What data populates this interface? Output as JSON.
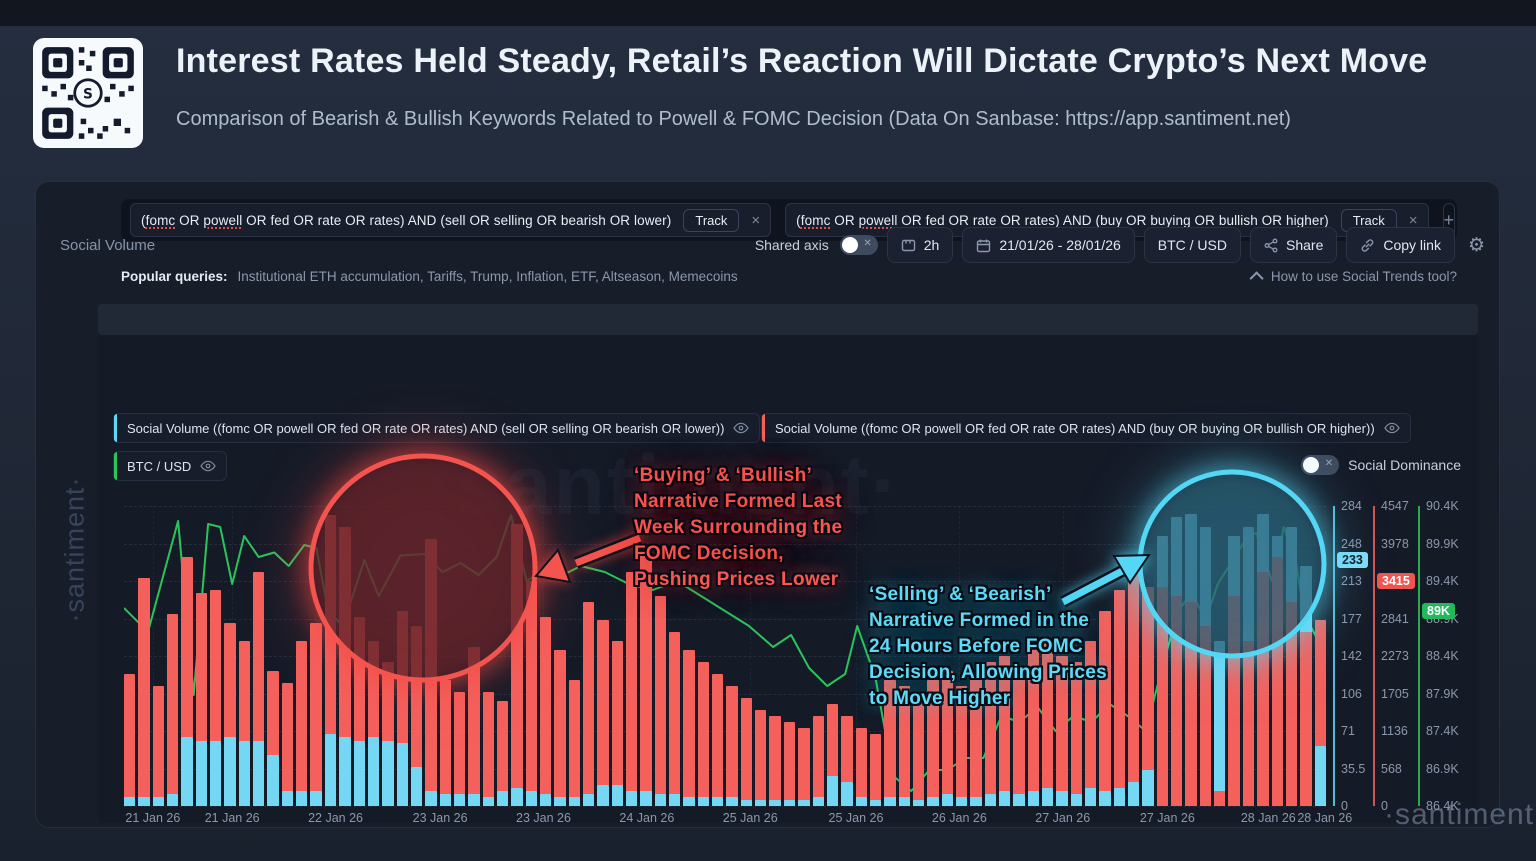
{
  "header": {
    "title": "Interest Rates Held Steady, Retail’s Reaction Will Dictate Crypto’s Next Move",
    "subtitle": "Comparison of Bearish & Bullish Keywords Related to Powell & FOMC Decision (Data On Sanbase: https://app.santiment.net)"
  },
  "queries": [
    {
      "text": "(fomc OR powell OR fed OR rate OR rates) AND (sell OR selling OR bearish OR lower)",
      "track_label": "Track",
      "close_label": "×"
    },
    {
      "text": "(fomc OR powell OR fed OR rate OR rates) AND (buy OR buying OR bullish OR higher)",
      "track_label": "Track",
      "close_label": "×"
    }
  ],
  "add_query_label": "+",
  "popular": {
    "label": "Popular queries:",
    "items": [
      "Institutional ETH accumulation",
      "Tariffs",
      "Trump",
      "Inflation",
      "ETF",
      "Altseason",
      "Memecoins"
    ],
    "separator": ", "
  },
  "help_link": "How to use Social Trends tool?",
  "toolbar": {
    "title": "Social Volume",
    "shared_axis_label": "Shared axis",
    "interval_label": "2h",
    "date_range_label": "21/01/26 - 28/01/26",
    "pair_label": "BTC / USD",
    "share_label": "Share",
    "copy_link_label": "Copy link"
  },
  "legend": [
    {
      "label": "Social Volume ((fomc OR powell OR fed OR rate OR rates) AND (sell OR selling OR bearish OR lower))",
      "color": "#5FD8F5"
    },
    {
      "label": "Social Volume ((fomc OR powell OR fed OR rate OR rates) AND (buy OR buying OR bullish OR higher))",
      "color": "#F4605C"
    },
    {
      "label": "BTC / USD",
      "color": "#2BC45A"
    }
  ],
  "social_dominance_label": "Social Dominance",
  "annotations": {
    "red": {
      "lines": [
        "‘Buying’ & ‘Bullish’",
        "Narrative Formed Last",
        "Week Surrounding the",
        "FOMC Decision,",
        "Pushing Prices Lower"
      ],
      "color": "#FF5450"
    },
    "cyan": {
      "lines": [
        "‘Selling’ & ‘Bearish’",
        "Narrative Formed in the",
        "24 Hours Before FOMC",
        "Decision, Allowing Prices",
        "to Move Higher"
      ],
      "color": "#5FDBF7"
    }
  },
  "watermarks": {
    "vertical": "·santiment·",
    "center": "·santiment·",
    "bottom_right": "·santiment·"
  },
  "chart_data": {
    "type": "bar",
    "interval": "2h",
    "date_range": [
      "21 Jan 26",
      "28 Jan 26"
    ],
    "x_labels": [
      {
        "label": "21 Jan 26",
        "xf": 0.024
      },
      {
        "label": "21 Jan 26",
        "xf": 0.09
      },
      {
        "label": "22 Jan 26",
        "xf": 0.176
      },
      {
        "label": "23 Jan 26",
        "xf": 0.263
      },
      {
        "label": "23 Jan 26",
        "xf": 0.349
      },
      {
        "label": "24 Jan 26",
        "xf": 0.435
      },
      {
        "label": "25 Jan 26",
        "xf": 0.521
      },
      {
        "label": "25 Jan 26",
        "xf": 0.609
      },
      {
        "label": "26 Jan 26",
        "xf": 0.695
      },
      {
        "label": "27 Jan 26",
        "xf": 0.781
      },
      {
        "label": "27 Jan 26",
        "xf": 0.868
      },
      {
        "label": "28 Jan 26",
        "xf": 0.952
      },
      {
        "label": "28 Jan 26",
        "xf": 0.999
      }
    ],
    "axes": {
      "bearish": {
        "color": "#5FD8F5",
        "max": 284,
        "ticks": [
          "284",
          "248",
          "213",
          "177",
          "142",
          "106",
          "71",
          "35.5",
          "0"
        ],
        "badge": {
          "text": "233",
          "value": 233,
          "bg": "#7EDCF7",
          "fg": "#0C1220"
        }
      },
      "bullish": {
        "color": "#F4605C",
        "max": 4547,
        "ticks": [
          "4547",
          "3978",
          "3415",
          "2841",
          "2273",
          "1705",
          "1136",
          "568",
          "0"
        ],
        "badge": {
          "text": "3415",
          "value": 3415,
          "bg": "#EF5550",
          "fg": "#FFFFFF"
        }
      },
      "price": {
        "color": "#2BC45A",
        "min": 86400,
        "max": 90400,
        "ticks": [
          "90.4K",
          "89.9K",
          "89.4K",
          "88.9K",
          "88.4K",
          "87.9K",
          "87.4K",
          "86.9K",
          "86.4K"
        ],
        "badge": {
          "text": "89K",
          "value": 89000,
          "bg": "#22B85C",
          "fg": "#FFFFFF"
        }
      }
    },
    "series": [
      {
        "name": "Social Volume (bullish query)",
        "type": "bar",
        "color": "#F4605C",
        "axis": "bullish",
        "values": [
          2001,
          3456,
          1819,
          2910,
          3774,
          3228,
          3274,
          2774,
          2501,
          3547,
          2046,
          1864,
          2501,
          2774,
          4411,
          4229,
          2865,
          2501,
          2183,
          2956,
          2728,
          4047,
          1910,
          1728,
          2410,
          1728,
          1591,
          4274,
          3410,
          2865,
          2364,
          1910,
          3092,
          2819,
          2501,
          3547,
          3910,
          3183,
          2637,
          2364,
          2183,
          2001,
          1819,
          1637,
          1455,
          1364,
          1273,
          1182,
          1364,
          1546,
          1364,
          1182,
          1091,
          1910,
          1819,
          1728,
          1910,
          2046,
          1819,
          2001,
          2183,
          2274,
          2092,
          2364,
          2501,
          2274,
          2183,
          2501,
          2956,
          3274,
          3547,
          3319,
          3319,
          3183,
          3092,
          2728,
          227,
          3183,
          2501,
          3547,
          3774,
          3092,
          2637,
          2819
        ]
      },
      {
        "name": "Social Volume (bearish query)",
        "type": "bar",
        "color": "#74D7F3",
        "axis": "bearish",
        "values": [
          9,
          9,
          9,
          11,
          65,
          62,
          62,
          65,
          62,
          62,
          48,
          14,
          14,
          14,
          68,
          65,
          62,
          65,
          62,
          60,
          37,
          14,
          11,
          11,
          11,
          9,
          14,
          17,
          14,
          11,
          9,
          9,
          11,
          20,
          20,
          14,
          14,
          11,
          11,
          9,
          9,
          9,
          9,
          6,
          6,
          6,
          6,
          6,
          9,
          28,
          23,
          9,
          6,
          9,
          9,
          6,
          9,
          11,
          9,
          9,
          11,
          14,
          11,
          14,
          17,
          14,
          11,
          17,
          14,
          17,
          23,
          34,
          256,
          274,
          276,
          264,
          156,
          256,
          264,
          276,
          256,
          264,
          227,
          57
        ]
      },
      {
        "name": "BTC / USD",
        "type": "line",
        "color": "#2BC45A",
        "axis": "price",
        "points": [
          [
            0,
            89040
          ],
          [
            0.02,
            88720
          ],
          [
            0.045,
            90200
          ],
          [
            0.058,
            87880
          ],
          [
            0.07,
            90160
          ],
          [
            0.08,
            90120
          ],
          [
            0.09,
            89360
          ],
          [
            0.1,
            90000
          ],
          [
            0.112,
            89720
          ],
          [
            0.125,
            89780
          ],
          [
            0.137,
            89600
          ],
          [
            0.15,
            89880
          ],
          [
            0.16,
            89840
          ],
          [
            0.17,
            89000
          ],
          [
            0.182,
            88800
          ],
          [
            0.2,
            89680
          ],
          [
            0.212,
            89200
          ],
          [
            0.23,
            89740
          ],
          [
            0.25,
            89760
          ],
          [
            0.265,
            89520
          ],
          [
            0.28,
            89640
          ],
          [
            0.295,
            89480
          ],
          [
            0.31,
            89720
          ],
          [
            0.322,
            90280
          ],
          [
            0.335,
            89400
          ],
          [
            0.35,
            89560
          ],
          [
            0.365,
            89480
          ],
          [
            0.38,
            89600
          ],
          [
            0.4,
            89520
          ],
          [
            0.42,
            89360
          ],
          [
            0.44,
            89280
          ],
          [
            0.46,
            89400
          ],
          [
            0.48,
            89200
          ],
          [
            0.5,
            89000
          ],
          [
            0.52,
            88800
          ],
          [
            0.54,
            88520
          ],
          [
            0.555,
            88680
          ],
          [
            0.57,
            88240
          ],
          [
            0.585,
            88000
          ],
          [
            0.6,
            88160
          ],
          [
            0.61,
            88800
          ],
          [
            0.625,
            88120
          ],
          [
            0.64,
            86800
          ],
          [
            0.655,
            86600
          ],
          [
            0.67,
            86880
          ],
          [
            0.685,
            86880
          ],
          [
            0.7,
            87040
          ],
          [
            0.715,
            87040
          ],
          [
            0.73,
            87600
          ],
          [
            0.745,
            87520
          ],
          [
            0.76,
            87720
          ],
          [
            0.775,
            87400
          ],
          [
            0.79,
            87600
          ],
          [
            0.805,
            87520
          ],
          [
            0.82,
            87760
          ],
          [
            0.835,
            87600
          ],
          [
            0.85,
            87400
          ],
          [
            0.865,
            88320
          ],
          [
            0.877,
            89000
          ],
          [
            0.888,
            89240
          ],
          [
            0.9,
            88880
          ],
          [
            0.91,
            89360
          ],
          [
            0.935,
            90000
          ],
          [
            0.942,
            90040
          ],
          [
            0.955,
            89400
          ],
          [
            0.965,
            90120
          ],
          [
            0.975,
            89640
          ],
          [
            0.982,
            88960
          ],
          [
            1,
            88400
          ]
        ]
      }
    ]
  }
}
